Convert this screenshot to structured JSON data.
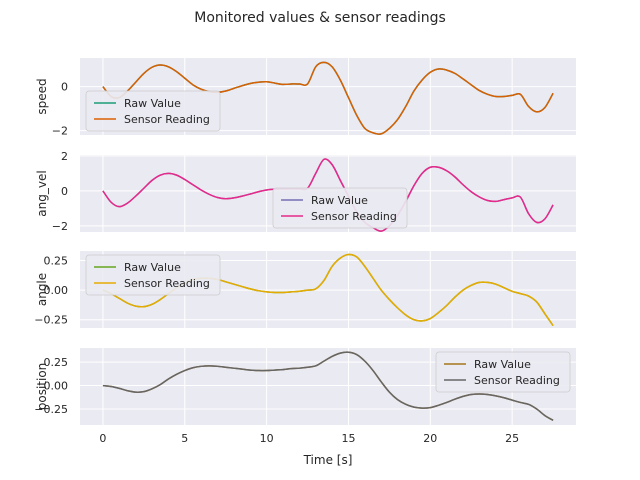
{
  "chart_data": {
    "type": "line",
    "title": "Monitored values & sensor readings",
    "xlabel": "Time [s]",
    "xlim": [
      -1.4,
      28.9
    ],
    "xticks": [
      0,
      5,
      10,
      15,
      20,
      25
    ],
    "grid": true,
    "panels": [
      {
        "ylabel": "speed",
        "ylim": [
          -2.2,
          1.3
        ],
        "yticks": [
          0,
          -2
        ],
        "legend_position": "lower-left",
        "series": [
          {
            "name": "Raw Value",
            "color": "#1b9e77",
            "x": [
              0,
              0.5,
              1,
              1.5,
              2,
              2.5,
              3,
              3.5,
              4,
              4.5,
              5,
              5.5,
              6,
              6.5,
              7,
              7.5,
              8,
              8.5,
              9,
              9.5,
              10,
              10.5,
              11,
              11.5,
              12,
              12.5,
              13,
              13.5,
              14,
              14.5,
              15,
              15.5,
              16,
              16.5,
              17,
              17.5,
              18,
              18.5,
              19,
              19.5,
              20,
              20.5,
              21,
              21.5,
              22,
              22.5,
              23,
              23.5,
              24,
              24.5,
              25,
              25.5,
              26,
              26.5,
              27,
              27.5
            ],
            "y": [
              0.0,
              -0.45,
              -0.5,
              -0.2,
              0.2,
              0.6,
              0.88,
              0.98,
              0.9,
              0.68,
              0.38,
              0.08,
              -0.12,
              -0.23,
              -0.26,
              -0.2,
              -0.08,
              0.04,
              0.14,
              0.2,
              0.22,
              0.16,
              0.1,
              0.12,
              0.12,
              0.12,
              0.9,
              1.1,
              0.9,
              0.3,
              -0.5,
              -1.3,
              -1.9,
              -2.1,
              -2.15,
              -1.9,
              -1.5,
              -0.9,
              -0.2,
              0.3,
              0.65,
              0.8,
              0.75,
              0.6,
              0.35,
              0.08,
              -0.18,
              -0.35,
              -0.45,
              -0.45,
              -0.4,
              -0.35,
              -0.9,
              -1.15,
              -0.95,
              -0.3
            ]
          },
          {
            "name": "Sensor Reading",
            "color": "#d95f02",
            "x": [
              0,
              0.5,
              1,
              1.5,
              2,
              2.5,
              3,
              3.5,
              4,
              4.5,
              5,
              5.5,
              6,
              6.5,
              7,
              7.5,
              8,
              8.5,
              9,
              9.5,
              10,
              10.5,
              11,
              11.5,
              12,
              12.5,
              13,
              13.5,
              14,
              14.5,
              15,
              15.5,
              16,
              16.5,
              17,
              17.5,
              18,
              18.5,
              19,
              19.5,
              20,
              20.5,
              21,
              21.5,
              22,
              22.5,
              23,
              23.5,
              24,
              24.5,
              25,
              25.5,
              26,
              26.5,
              27,
              27.5
            ],
            "y": [
              0.0,
              -0.45,
              -0.5,
              -0.2,
              0.2,
              0.6,
              0.88,
              0.98,
              0.9,
              0.68,
              0.38,
              0.08,
              -0.12,
              -0.23,
              -0.26,
              -0.2,
              -0.08,
              0.04,
              0.14,
              0.2,
              0.22,
              0.16,
              0.1,
              0.12,
              0.12,
              0.12,
              0.9,
              1.1,
              0.9,
              0.3,
              -0.5,
              -1.3,
              -1.9,
              -2.1,
              -2.15,
              -1.9,
              -1.5,
              -0.9,
              -0.2,
              0.3,
              0.65,
              0.8,
              0.75,
              0.6,
              0.35,
              0.08,
              -0.18,
              -0.35,
              -0.45,
              -0.45,
              -0.4,
              -0.35,
              -0.9,
              -1.15,
              -0.95,
              -0.3
            ]
          }
        ]
      },
      {
        "ylabel": "ang_vel",
        "ylim": [
          -2.35,
          2.05
        ],
        "yticks": [
          2,
          0,
          -2
        ],
        "legend_position": "lower-center",
        "series": [
          {
            "name": "Raw Value",
            "color": "#7570b3",
            "x": [
              0,
              0.5,
              1,
              1.5,
              2,
              2.5,
              3,
              3.5,
              4,
              4.5,
              5,
              5.5,
              6,
              6.5,
              7,
              7.5,
              8,
              8.5,
              9,
              9.5,
              10,
              10.5,
              11,
              11.5,
              12,
              12.5,
              13,
              13.5,
              14,
              14.5,
              15,
              15.5,
              16,
              16.5,
              17,
              17.5,
              18,
              18.5,
              19,
              19.5,
              20,
              20.5,
              21,
              21.5,
              22,
              22.5,
              23,
              23.5,
              24,
              24.5,
              25,
              25.5,
              26,
              26.5,
              27,
              27.5
            ],
            "y": [
              0.0,
              -0.65,
              -0.9,
              -0.7,
              -0.3,
              0.15,
              0.6,
              0.9,
              1.0,
              0.9,
              0.65,
              0.35,
              0.05,
              -0.2,
              -0.38,
              -0.45,
              -0.4,
              -0.3,
              -0.18,
              -0.05,
              0.05,
              0.1,
              0.12,
              0.12,
              0.12,
              0.15,
              1.0,
              1.8,
              1.5,
              0.6,
              -0.3,
              -1.2,
              -1.8,
              -2.1,
              -2.3,
              -2.0,
              -1.4,
              -0.6,
              0.3,
              1.0,
              1.35,
              1.35,
              1.15,
              0.8,
              0.35,
              -0.05,
              -0.35,
              -0.55,
              -0.6,
              -0.5,
              -0.4,
              -0.35,
              -1.3,
              -1.8,
              -1.6,
              -0.8
            ]
          },
          {
            "name": "Sensor Reading",
            "color": "#e7298a",
            "x": [
              0,
              0.5,
              1,
              1.5,
              2,
              2.5,
              3,
              3.5,
              4,
              4.5,
              5,
              5.5,
              6,
              6.5,
              7,
              7.5,
              8,
              8.5,
              9,
              9.5,
              10,
              10.5,
              11,
              11.5,
              12,
              12.5,
              13,
              13.5,
              14,
              14.5,
              15,
              15.5,
              16,
              16.5,
              17,
              17.5,
              18,
              18.5,
              19,
              19.5,
              20,
              20.5,
              21,
              21.5,
              22,
              22.5,
              23,
              23.5,
              24,
              24.5,
              25,
              25.5,
              26,
              26.5,
              27,
              27.5
            ],
            "y": [
              0.0,
              -0.65,
              -0.9,
              -0.7,
              -0.3,
              0.15,
              0.6,
              0.9,
              1.0,
              0.9,
              0.65,
              0.35,
              0.05,
              -0.2,
              -0.38,
              -0.45,
              -0.4,
              -0.3,
              -0.18,
              -0.05,
              0.05,
              0.1,
              0.12,
              0.12,
              0.12,
              0.15,
              1.0,
              1.8,
              1.5,
              0.6,
              -0.3,
              -1.2,
              -1.8,
              -2.1,
              -2.3,
              -2.0,
              -1.4,
              -0.6,
              0.3,
              1.0,
              1.35,
              1.35,
              1.15,
              0.8,
              0.35,
              -0.05,
              -0.35,
              -0.55,
              -0.6,
              -0.5,
              -0.4,
              -0.35,
              -1.3,
              -1.8,
              -1.6,
              -0.8
            ]
          }
        ]
      },
      {
        "ylabel": "angle",
        "ylim": [
          -0.32,
          0.33
        ],
        "yticks": [
          0.25,
          0.0,
          -0.25
        ],
        "legend_position": "upper-left",
        "series": [
          {
            "name": "Raw Value",
            "color": "#66a61e",
            "x": [
              0,
              0.5,
              1,
              1.5,
              2,
              2.5,
              3,
              3.5,
              4,
              4.5,
              5,
              5.5,
              6,
              6.5,
              7,
              7.5,
              8,
              8.5,
              9,
              9.5,
              10,
              10.5,
              11,
              11.5,
              12,
              12.5,
              13,
              13.5,
              14,
              14.5,
              15,
              15.5,
              16,
              16.5,
              17,
              17.5,
              18,
              18.5,
              19,
              19.5,
              20,
              20.5,
              21,
              21.5,
              22,
              22.5,
              23,
              23.5,
              24,
              24.5,
              25,
              25.5,
              26,
              26.5,
              27,
              27.5
            ],
            "y": [
              0.0,
              -0.03,
              -0.07,
              -0.11,
              -0.135,
              -0.14,
              -0.12,
              -0.08,
              -0.03,
              0.02,
              0.06,
              0.09,
              0.1,
              0.1,
              0.09,
              0.07,
              0.05,
              0.03,
              0.01,
              -0.005,
              -0.015,
              -0.02,
              -0.02,
              -0.015,
              -0.01,
              0.0,
              0.01,
              0.08,
              0.2,
              0.27,
              0.3,
              0.28,
              0.2,
              0.1,
              0.0,
              -0.08,
              -0.15,
              -0.21,
              -0.25,
              -0.26,
              -0.24,
              -0.19,
              -0.13,
              -0.06,
              0.0,
              0.04,
              0.065,
              0.065,
              0.05,
              0.02,
              -0.01,
              -0.03,
              -0.05,
              -0.1,
              -0.2,
              -0.3
            ]
          },
          {
            "name": "Sensor Reading",
            "color": "#e6ab02",
            "x": [
              0,
              0.5,
              1,
              1.5,
              2,
              2.5,
              3,
              3.5,
              4,
              4.5,
              5,
              5.5,
              6,
              6.5,
              7,
              7.5,
              8,
              8.5,
              9,
              9.5,
              10,
              10.5,
              11,
              11.5,
              12,
              12.5,
              13,
              13.5,
              14,
              14.5,
              15,
              15.5,
              16,
              16.5,
              17,
              17.5,
              18,
              18.5,
              19,
              19.5,
              20,
              20.5,
              21,
              21.5,
              22,
              22.5,
              23,
              23.5,
              24,
              24.5,
              25,
              25.5,
              26,
              26.5,
              27,
              27.5
            ],
            "y": [
              0.0,
              -0.03,
              -0.07,
              -0.11,
              -0.135,
              -0.14,
              -0.12,
              -0.08,
              -0.03,
              0.02,
              0.06,
              0.09,
              0.1,
              0.1,
              0.09,
              0.07,
              0.05,
              0.03,
              0.01,
              -0.005,
              -0.015,
              -0.02,
              -0.02,
              -0.015,
              -0.01,
              0.0,
              0.01,
              0.08,
              0.2,
              0.27,
              0.3,
              0.28,
              0.2,
              0.1,
              0.0,
              -0.08,
              -0.15,
              -0.21,
              -0.25,
              -0.26,
              -0.24,
              -0.19,
              -0.13,
              -0.06,
              0.0,
              0.04,
              0.065,
              0.065,
              0.05,
              0.02,
              -0.01,
              -0.03,
              -0.05,
              -0.1,
              -0.2,
              -0.3
            ]
          }
        ]
      },
      {
        "ylabel": "position",
        "ylim": [
          -0.42,
          0.4
        ],
        "yticks": [
          0.25,
          0.0,
          -0.25
        ],
        "legend_position": "upper-right",
        "series": [
          {
            "name": "Raw Value",
            "color": "#a6761d",
            "x": [
              0,
              0.5,
              1,
              1.5,
              2,
              2.5,
              3,
              3.5,
              4,
              4.5,
              5,
              5.5,
              6,
              6.5,
              7,
              7.5,
              8,
              8.5,
              9,
              9.5,
              10,
              10.5,
              11,
              11.5,
              12,
              12.5,
              13,
              13.5,
              14,
              14.5,
              15,
              15.5,
              16,
              16.5,
              17,
              17.5,
              18,
              18.5,
              19,
              19.5,
              20,
              20.5,
              21,
              21.5,
              22,
              22.5,
              23,
              23.5,
              24,
              24.5,
              25,
              25.5,
              26,
              26.5,
              27,
              27.5
            ],
            "y": [
              0.0,
              -0.01,
              -0.03,
              -0.055,
              -0.07,
              -0.065,
              -0.035,
              0.01,
              0.07,
              0.12,
              0.16,
              0.19,
              0.205,
              0.21,
              0.205,
              0.195,
              0.185,
              0.175,
              0.165,
              0.16,
              0.16,
              0.165,
              0.17,
              0.18,
              0.185,
              0.195,
              0.21,
              0.26,
              0.31,
              0.345,
              0.355,
              0.33,
              0.26,
              0.16,
              0.04,
              -0.07,
              -0.15,
              -0.2,
              -0.23,
              -0.24,
              -0.235,
              -0.21,
              -0.18,
              -0.145,
              -0.115,
              -0.095,
              -0.09,
              -0.095,
              -0.11,
              -0.13,
              -0.155,
              -0.18,
              -0.2,
              -0.25,
              -0.32,
              -0.37
            ]
          },
          {
            "name": "Sensor Reading",
            "color": "#666666",
            "x": [
              0,
              0.5,
              1,
              1.5,
              2,
              2.5,
              3,
              3.5,
              4,
              4.5,
              5,
              5.5,
              6,
              6.5,
              7,
              7.5,
              8,
              8.5,
              9,
              9.5,
              10,
              10.5,
              11,
              11.5,
              12,
              12.5,
              13,
              13.5,
              14,
              14.5,
              15,
              15.5,
              16,
              16.5,
              17,
              17.5,
              18,
              18.5,
              19,
              19.5,
              20,
              20.5,
              21,
              21.5,
              22,
              22.5,
              23,
              23.5,
              24,
              24.5,
              25,
              25.5,
              26,
              26.5,
              27,
              27.5
            ],
            "y": [
              0.0,
              -0.01,
              -0.03,
              -0.055,
              -0.07,
              -0.065,
              -0.035,
              0.01,
              0.07,
              0.12,
              0.16,
              0.19,
              0.205,
              0.21,
              0.205,
              0.195,
              0.185,
              0.175,
              0.165,
              0.16,
              0.16,
              0.165,
              0.17,
              0.18,
              0.185,
              0.195,
              0.21,
              0.26,
              0.31,
              0.345,
              0.355,
              0.33,
              0.26,
              0.16,
              0.04,
              -0.07,
              -0.15,
              -0.2,
              -0.23,
              -0.24,
              -0.235,
              -0.21,
              -0.18,
              -0.145,
              -0.115,
              -0.095,
              -0.09,
              -0.095,
              -0.11,
              -0.13,
              -0.155,
              -0.18,
              -0.2,
              -0.25,
              -0.32,
              -0.37
            ]
          }
        ]
      }
    ]
  }
}
